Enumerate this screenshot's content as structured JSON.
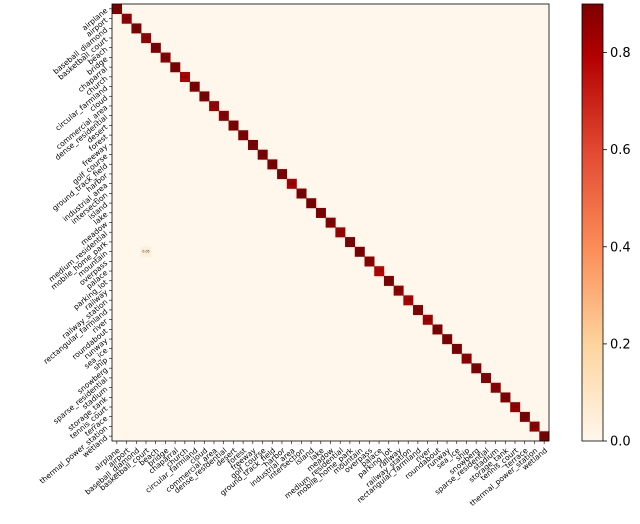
{
  "chart_data": {
    "type": "heatmap",
    "title": "",
    "xlabel": "",
    "ylabel": "",
    "categories": [
      "airplane",
      "airport",
      "baseball_diamond",
      "basketball_court",
      "beach",
      "bridge",
      "chaparral",
      "church",
      "circular_farmland",
      "cloud",
      "commercial_area",
      "dense_residential",
      "desert",
      "forest",
      "freeway",
      "golf_course",
      "ground_track_field",
      "harbor",
      "industrial_area",
      "intersection",
      "island",
      "lake",
      "meadow",
      "medium_residential",
      "mobile_home_park",
      "mountain",
      "overpass",
      "palace",
      "parking_lot",
      "railway",
      "railway_station",
      "rectangular_farmland",
      "river",
      "roundabout",
      "runway",
      "sea_ice",
      "ship",
      "snowberg",
      "sparse_residential",
      "stadium",
      "storage_tank",
      "tennis_court",
      "terrace",
      "thermal_power_station",
      "wetland"
    ],
    "diagonal": [
      0.94,
      0.86,
      0.92,
      0.85,
      0.96,
      0.88,
      0.97,
      0.8,
      0.95,
      0.97,
      0.84,
      0.88,
      0.93,
      0.94,
      0.9,
      0.92,
      0.93,
      0.95,
      0.82,
      0.9,
      0.94,
      0.91,
      0.88,
      0.84,
      0.93,
      0.9,
      0.87,
      0.78,
      0.92,
      0.86,
      0.8,
      0.89,
      0.83,
      0.9,
      0.92,
      0.97,
      0.86,
      0.95,
      0.88,
      0.87,
      0.9,
      0.85,
      0.93,
      0.86,
      0.9
    ],
    "off_diagonal": [
      {
        "row": 25,
        "col": 3,
        "value": 0.05
      }
    ],
    "colorbar": {
      "min": 0.0,
      "max": 0.9,
      "ticks": [
        "0.0",
        "0.2",
        "0.4",
        "0.6",
        "0.8"
      ],
      "colormap": "OrRd"
    },
    "grid": false
  }
}
